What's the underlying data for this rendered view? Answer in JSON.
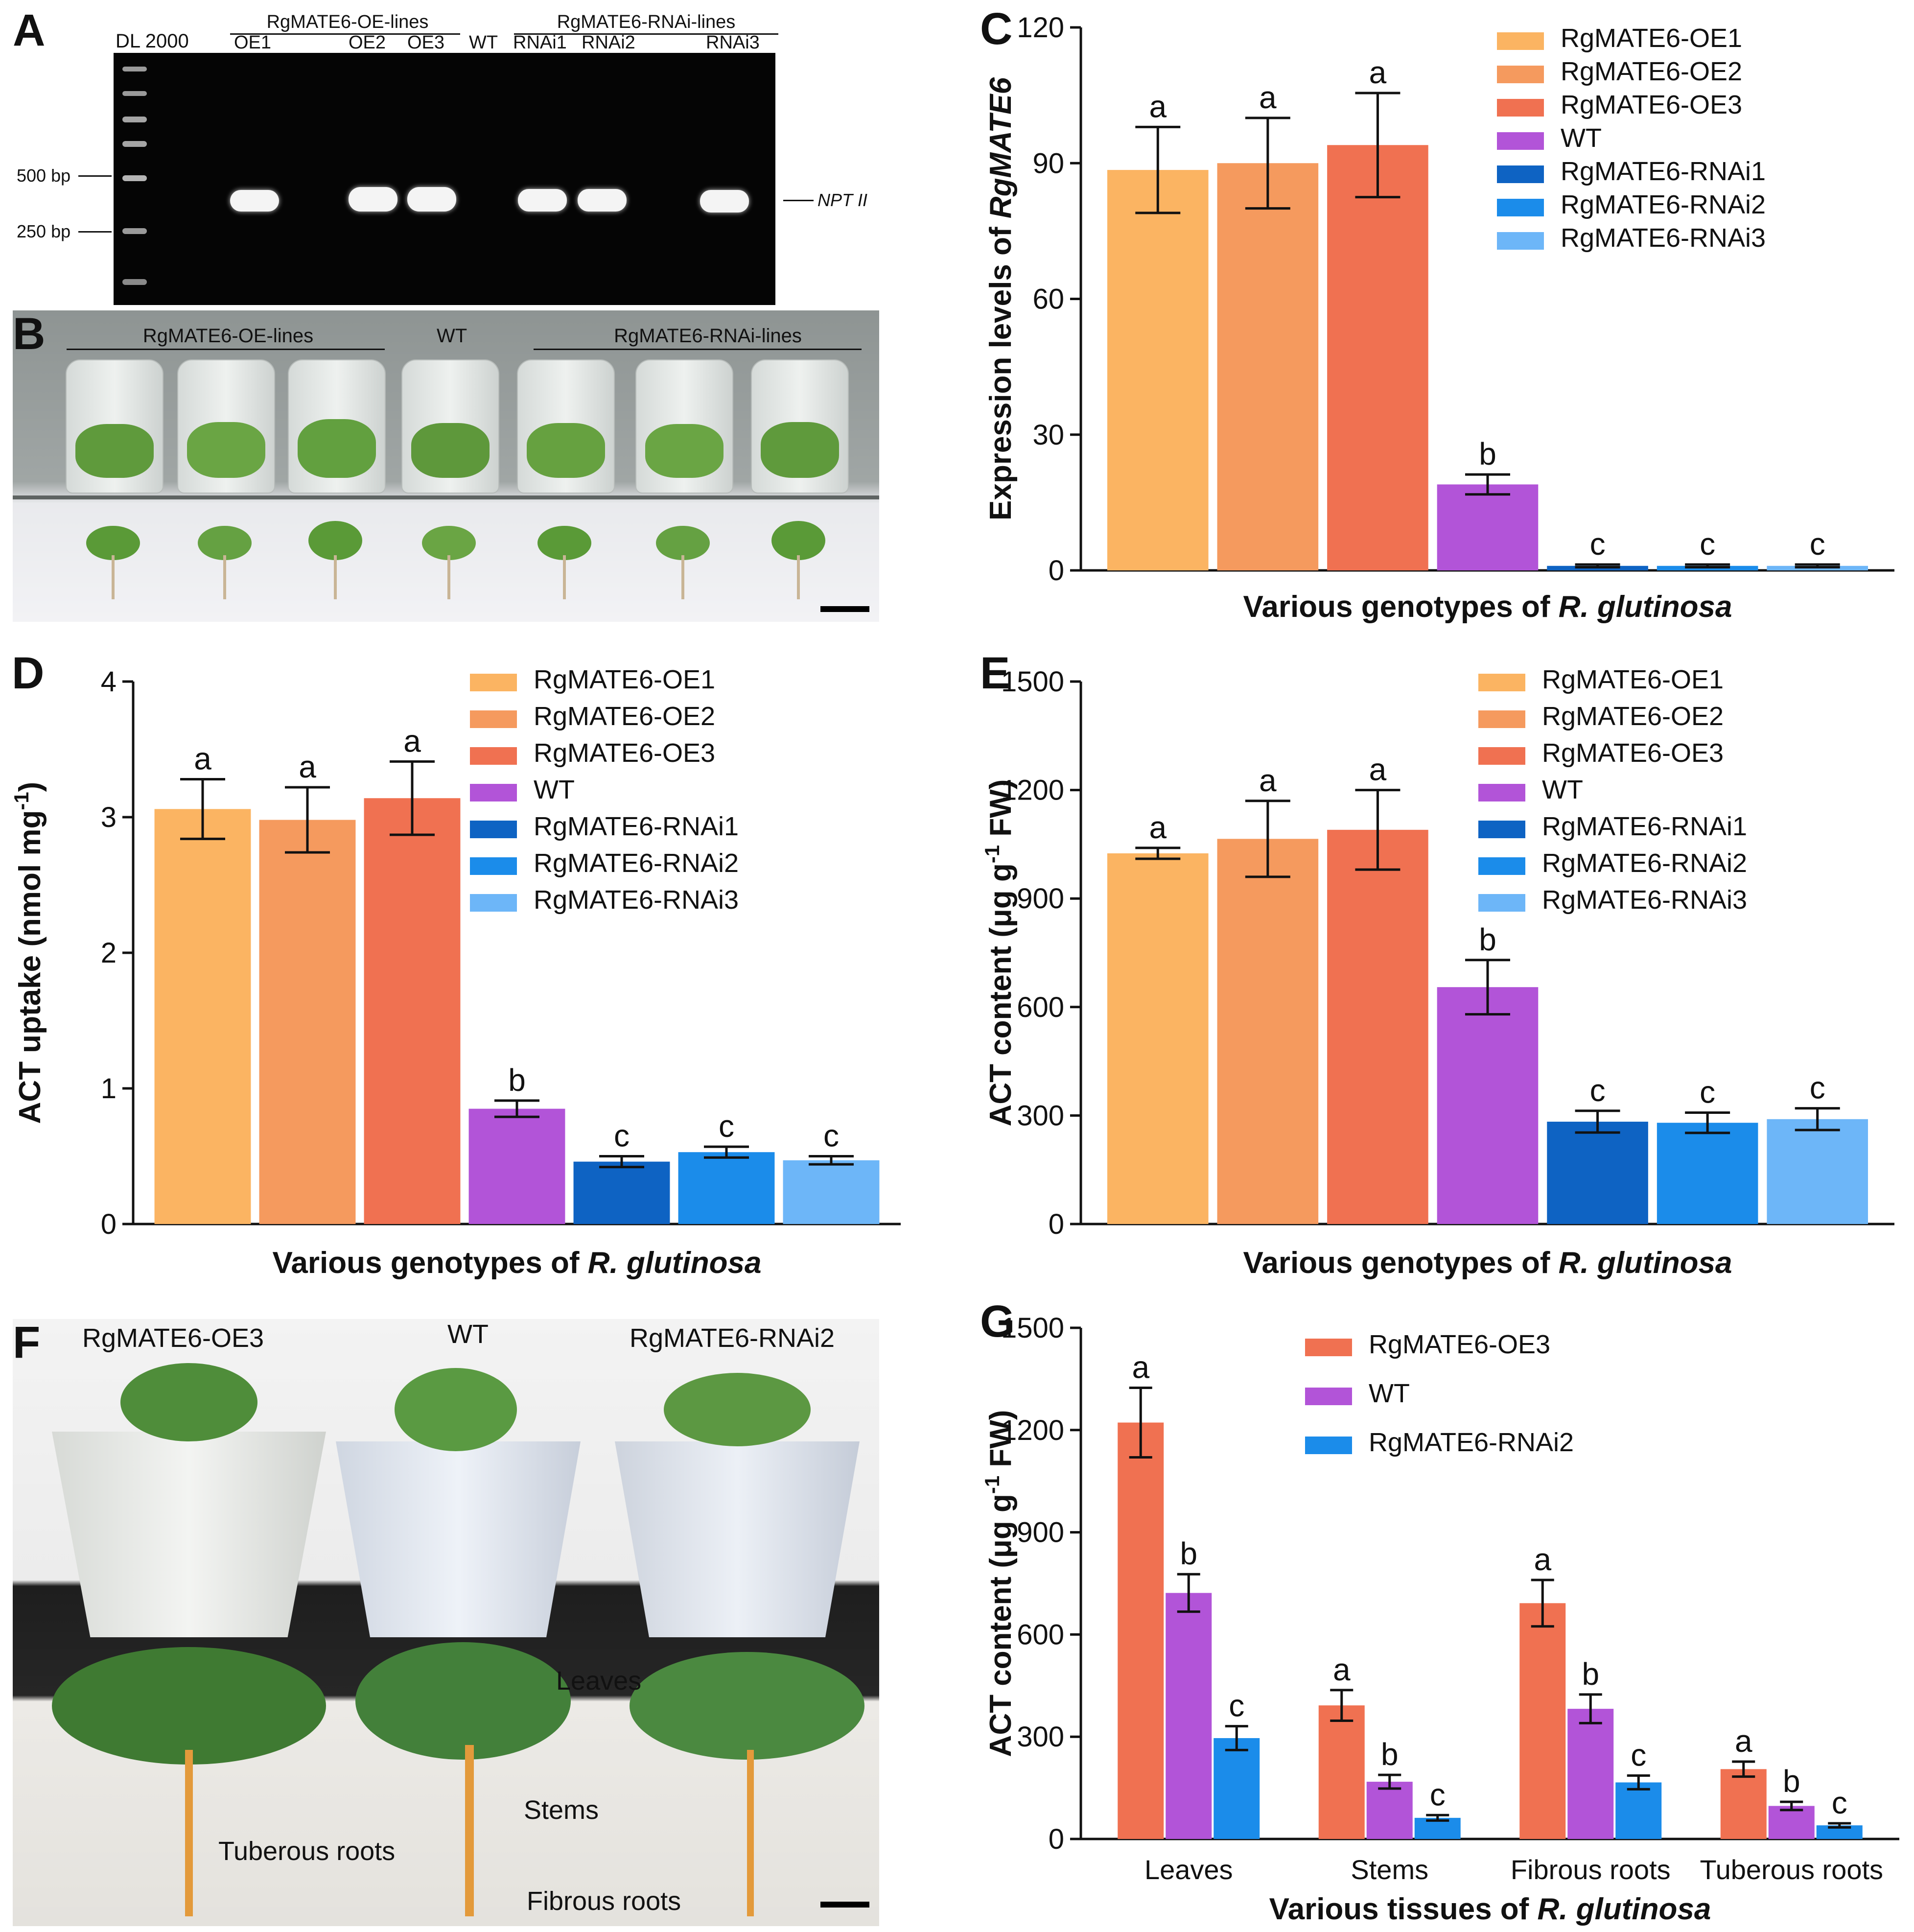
{
  "colors": {
    "oe1": "#FBB462",
    "oe2": "#F59A5E",
    "oe3": "#F07151",
    "wt": "#B254D8",
    "rnai1": "#0E63C3",
    "rnai2": "#1B8CEA",
    "rnai3": "#6DB6F8",
    "axis": "#111111",
    "gel_bg": "#050505",
    "band": "#f4f4f4"
  },
  "panelA": {
    "label": "A",
    "ladder_label": "DL 2000",
    "group_oe": "RgMATE6-OE-lines",
    "group_rnai": "RgMATE6-RNAi-lines",
    "lanes": [
      "OE1",
      "OE2",
      "OE3",
      "WT",
      "RNAi1",
      "RNAi2",
      "RNAi3"
    ],
    "marker_500": "500 bp",
    "marker_250": "250 bp",
    "band_label": "NPT II"
  },
  "panelB": {
    "label": "B",
    "group_oe": "RgMATE6-OE-lines",
    "group_wt": "WT",
    "group_rnai": "RgMATE6-RNAi-lines"
  },
  "panelF": {
    "label": "F",
    "pot_labels": [
      "RgMATE6-OE3",
      "WT",
      "RgMATE6-RNAi2"
    ],
    "annotations": {
      "leaves": "Leaves",
      "stems": "Stems",
      "tuberous": "Tuberous roots",
      "fibrous": "Fibrous roots"
    }
  },
  "chart_data": [
    {
      "id": "C",
      "type": "bar",
      "label": "C",
      "categories": [
        "RgMATE6-OE1",
        "RgMATE6-OE2",
        "RgMATE6-OE3",
        "WT",
        "RgMATE6-RNAi1",
        "RgMATE6-RNAi2",
        "RgMATE6-RNAi3"
      ],
      "values": [
        88.5,
        90,
        94,
        19,
        1.0,
        1.0,
        1.0
      ],
      "errors": [
        9.5,
        10,
        11.5,
        2.2,
        0.3,
        0.3,
        0.3
      ],
      "letters": [
        "a",
        "a",
        "a",
        "b",
        "c",
        "c",
        "c"
      ],
      "ylabel_prefix": "Expression levels of ",
      "ylabel_italic": "RgMATE6",
      "xlabel_prefix": "Various genotypes of ",
      "xlabel_italic": "R. glutinosa",
      "ylim": [
        0,
        120
      ],
      "yticks": [
        "0",
        "30",
        "60",
        "90",
        "120"
      ],
      "legend": [
        "RgMATE6-OE1",
        "RgMATE6-OE2",
        "RgMATE6-OE3",
        "WT",
        "RgMATE6-RNAi1",
        "RgMATE6-RNAi2",
        "RgMATE6-RNAi3"
      ]
    },
    {
      "id": "D",
      "type": "bar",
      "label": "D",
      "categories": [
        "RgMATE6-OE1",
        "RgMATE6-OE2",
        "RgMATE6-OE3",
        "WT",
        "RgMATE6-RNAi1",
        "RgMATE6-RNAi2",
        "RgMATE6-RNAi3"
      ],
      "values": [
        3.06,
        2.98,
        3.14,
        0.85,
        0.46,
        0.53,
        0.47
      ],
      "errors": [
        0.22,
        0.24,
        0.27,
        0.06,
        0.04,
        0.04,
        0.03
      ],
      "letters": [
        "a",
        "a",
        "a",
        "b",
        "c",
        "c",
        "c"
      ],
      "ylabel": "ACT uptake (nmol mg",
      "ylabel_sup": "-1",
      "ylabel_end": ")",
      "xlabel_prefix": "Various genotypes of ",
      "xlabel_italic": "R. glutinosa",
      "ylim": [
        0,
        4
      ],
      "yticks": [
        "0",
        "1",
        "2",
        "3",
        "4"
      ],
      "legend": [
        "RgMATE6-OE1",
        "RgMATE6-OE2",
        "RgMATE6-OE3",
        "WT",
        "RgMATE6-RNAi1",
        "RgMATE6-RNAi2",
        "RgMATE6-RNAi3"
      ]
    },
    {
      "id": "E",
      "type": "bar",
      "label": "E",
      "categories": [
        "RgMATE6-OE1",
        "RgMATE6-OE2",
        "RgMATE6-OE3",
        "WT",
        "RgMATE6-RNAi1",
        "RgMATE6-RNAi2",
        "RgMATE6-RNAi3"
      ],
      "values": [
        1025,
        1065,
        1090,
        655,
        283,
        280,
        290
      ],
      "errors": [
        15,
        105,
        110,
        75,
        30,
        28,
        30
      ],
      "letters": [
        "a",
        "a",
        "a",
        "b",
        "c",
        "c",
        "c"
      ],
      "ylabel": "ACT content (μg g",
      "ylabel_sup": "-1",
      "ylabel_end": " FW)",
      "xlabel_prefix": "Various genotypes of ",
      "xlabel_italic": "R. glutinosa",
      "ylim": [
        0,
        1500
      ],
      "yticks": [
        "0",
        "300",
        "600",
        "900",
        "1200",
        "1500"
      ],
      "legend": [
        "RgMATE6-OE1",
        "RgMATE6-OE2",
        "RgMATE6-OE3",
        "WT",
        "RgMATE6-RNAi1",
        "RgMATE6-RNAi2",
        "RgMATE6-RNAi3"
      ]
    },
    {
      "id": "G",
      "type": "bar",
      "label": "G",
      "categories": [
        "Leaves",
        "Stems",
        "Fibrous roots",
        "Tuberous roots"
      ],
      "series": [
        {
          "name": "RgMATE6-OE3",
          "values": [
            1222,
            392,
            692,
            205
          ],
          "errors": [
            102,
            45,
            68,
            22
          ],
          "letters": [
            "a",
            "a",
            "a",
            "a"
          ]
        },
        {
          "name": "WT",
          "values": [
            722,
            168,
            382,
            97
          ],
          "errors": [
            55,
            20,
            42,
            12
          ],
          "letters": [
            "b",
            "b",
            "b",
            "b"
          ]
        },
        {
          "name": "RgMATE6-RNAi2",
          "values": [
            296,
            62,
            166,
            40
          ],
          "errors": [
            35,
            8,
            20,
            6
          ],
          "letters": [
            "c",
            "c",
            "c",
            "c"
          ]
        }
      ],
      "ylabel": "ACT content (μg g",
      "ylabel_sup": "-1",
      "ylabel_end": " FW)",
      "xlabel_prefix": "Various tissues of ",
      "xlabel_italic": "R. glutinosa",
      "ylim": [
        0,
        1500
      ],
      "yticks": [
        "0",
        "300",
        "600",
        "900",
        "1200",
        "1500"
      ],
      "legend": [
        "RgMATE6-OE3",
        "WT",
        "RgMATE6-RNAi2"
      ]
    }
  ]
}
